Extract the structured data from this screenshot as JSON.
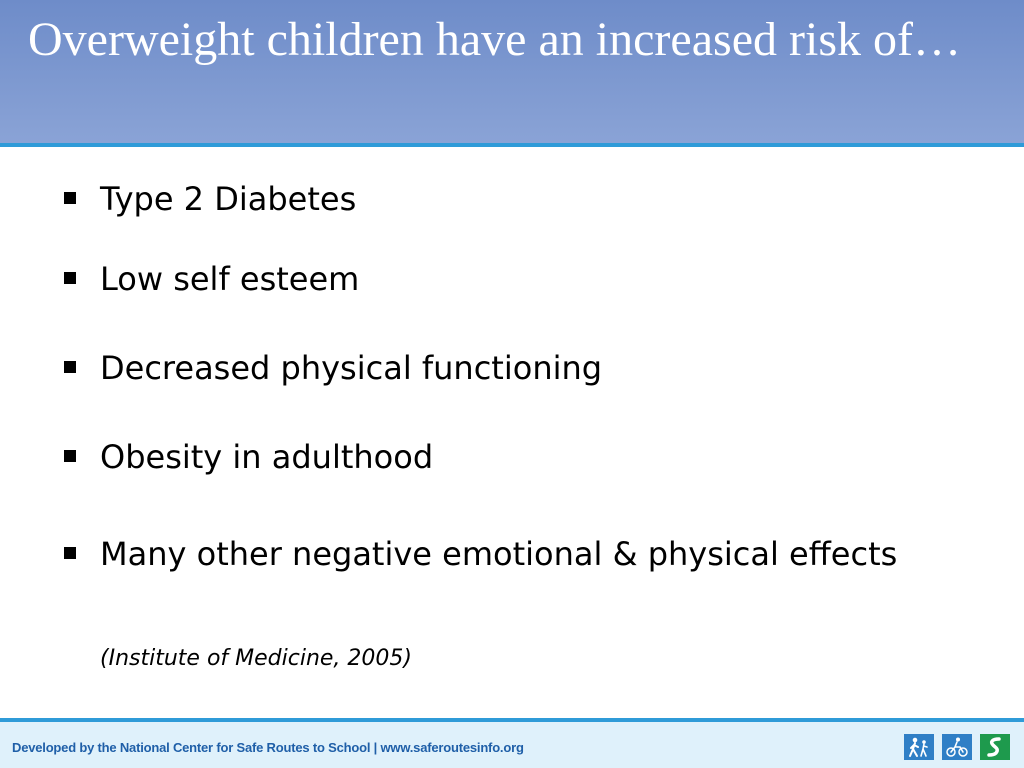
{
  "slide": {
    "title": "Overweight children have an increased risk of…",
    "bullets": [
      "Type 2 Diabetes",
      "Low self esteem",
      "Decreased physical functioning",
      "Obesity in adulthood",
      "Many other negative emotional & physical effects"
    ],
    "citation": "(Institute of Medicine, 2005)"
  },
  "footer": {
    "text": "Developed by the National Center for Safe Routes to School | www.saferoutesinfo.org",
    "icons": [
      "walking-person-icon",
      "bicycle-icon",
      "route-icon"
    ]
  },
  "colors": {
    "title_band": "#7b97d0",
    "accent_line": "#2f9bd8",
    "footer_background": "#dff1fb",
    "footer_text": "#1f5fa8",
    "walk_icon": "#2f7fc6",
    "bike_icon": "#2f7fc6",
    "route_icon": "#1e9a4d"
  }
}
